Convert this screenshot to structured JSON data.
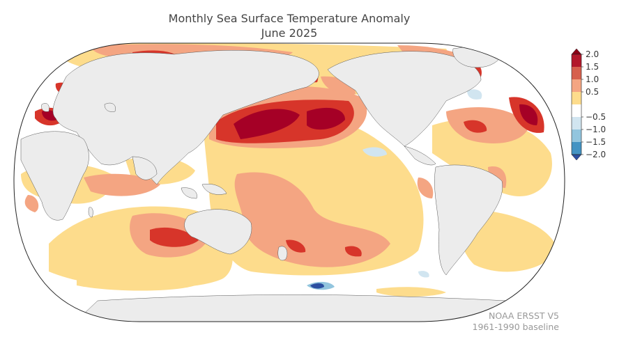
{
  "title_line1": "Monthly Sea Surface Temperature Anomaly",
  "title_line2": "June 2025",
  "colorbar": {
    "ticks": [
      "2.0",
      "1.5",
      "1.0",
      "0.5",
      "−0.5",
      "−1.0",
      "−1.5",
      "−2.0"
    ],
    "colors": [
      "#b2182b",
      "#d6604d",
      "#f4a582",
      "#fddc8c",
      "#ffffff",
      "#d1e5f0",
      "#92c5de",
      "#4393c3"
    ]
  },
  "credit_line1": "NOAA ERSST V5",
  "credit_line2": "1961-1990 baseline"
}
